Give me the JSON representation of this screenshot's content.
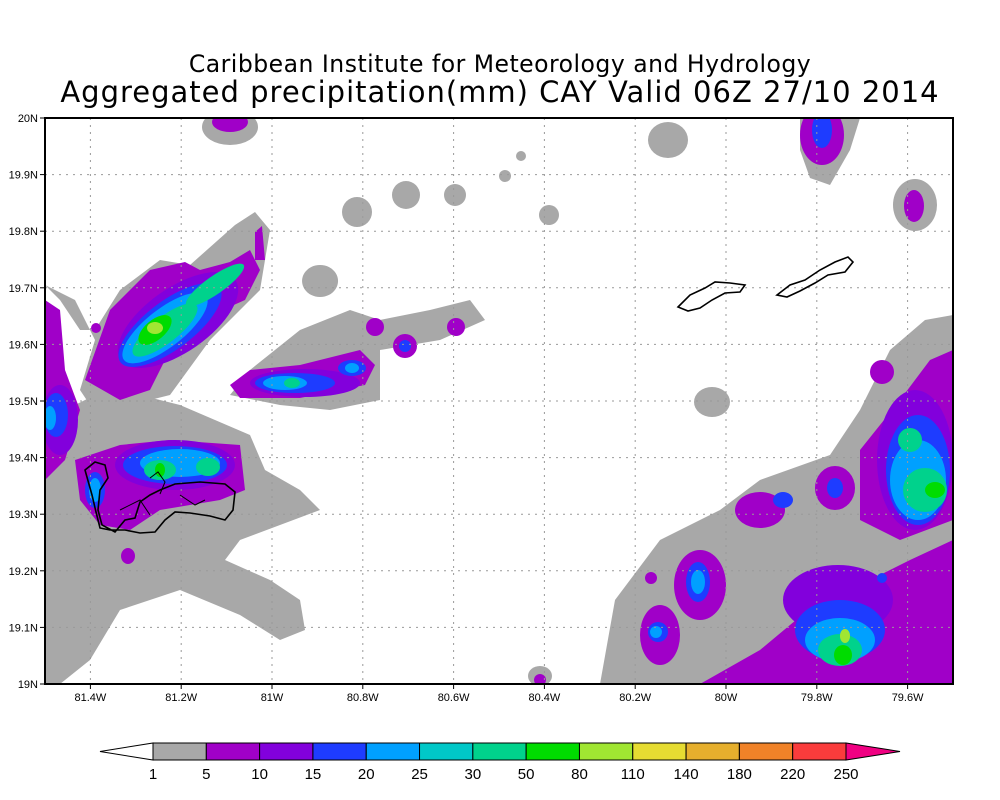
{
  "title": {
    "line1": "Caribbean Institute for Meteorology and Hydrology",
    "line2": "Aggregated precipitation(mm) CAY Valid 06Z 27/10 2014"
  },
  "map": {
    "lat_labels": [
      "20N",
      "19.9N",
      "19.8N",
      "19.7N",
      "19.6N",
      "19.5N",
      "19.4N",
      "19.3N",
      "19.2N",
      "19.1N",
      "19N"
    ],
    "lon_labels": [
      "81.4W",
      "81.2W",
      "81W",
      "80.8W",
      "80.6W",
      "80.4W",
      "80.2W",
      "80W",
      "79.8W",
      "79.6W"
    ],
    "lat_range": [
      19.0,
      20.0
    ],
    "lon_range": [
      -81.5,
      -79.5
    ],
    "islands": [
      "Grand Cayman",
      "Little Cayman",
      "Cayman Brac"
    ]
  },
  "colorbar": {
    "levels": [
      "1",
      "5",
      "10",
      "15",
      "20",
      "25",
      "30",
      "50",
      "80",
      "110",
      "140",
      "180",
      "220",
      "250"
    ],
    "colors": [
      "#a8a8a8",
      "#a000c8",
      "#8200dc",
      "#1e3cff",
      "#00a0ff",
      "#00c8c8",
      "#00d28c",
      "#00dc00",
      "#a0e632",
      "#e6dc32",
      "#e6af2d",
      "#f08228",
      "#fa3c3c"
    ],
    "under_color": "#ffffff",
    "over_color": "#f00082"
  }
}
